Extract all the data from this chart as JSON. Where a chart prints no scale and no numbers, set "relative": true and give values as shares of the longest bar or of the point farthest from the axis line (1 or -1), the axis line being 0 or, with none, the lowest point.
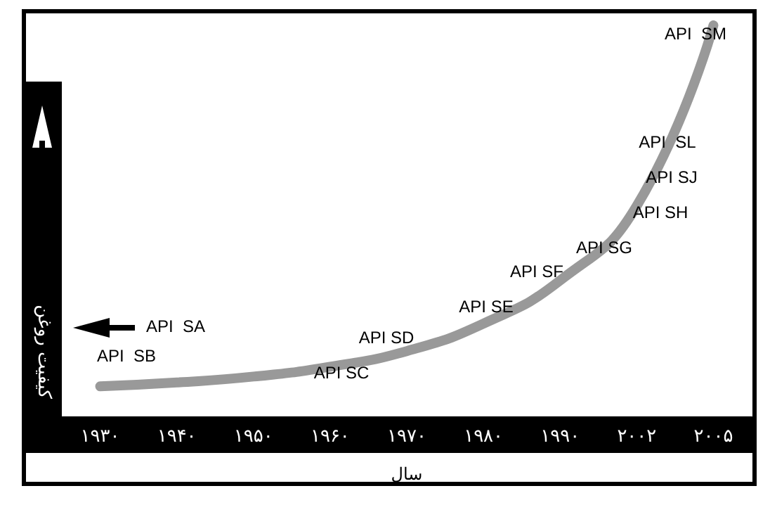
{
  "chart_data": {
    "type": "line",
    "xlabel": "سال",
    "ylabel": "کیفیت روغن",
    "relative": true,
    "marker": "none",
    "line_style": "solid",
    "categories": [
      "۱۹۳۰",
      "۱۹۴۰",
      "۱۹۵۰",
      "۱۹۶۰",
      "۱۹۷۰",
      "۱۹۸۰",
      "۱۹۹۰",
      "۲۰۰۲",
      "۲۰۰۵"
    ],
    "series": [
      {
        "color": "#999999",
        "values": [
          0.08,
          0.09,
          0.105,
          0.13,
          0.17,
          0.24,
          0.35,
          0.54,
          1
        ]
      }
    ],
    "annotations": [
      "API  SA",
      "API  SB",
      "API SC",
      "API SD",
      "API SE",
      "API SF",
      "API SG",
      "API SH",
      "API SJ",
      "API  SL",
      "API  SM"
    ]
  }
}
